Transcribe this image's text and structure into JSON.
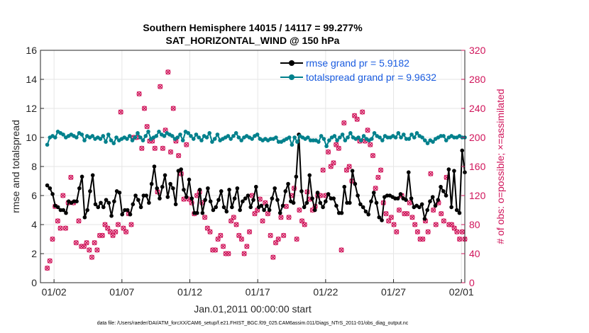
{
  "chart_data": {
    "type": "line",
    "title": "Southern Hemisphere 14015 / 14117 = 99.277%",
    "subtitle": "SAT_HORIZONTAL_WIND @ 150 hPa",
    "xlabel": "Jan.01,2011 00:00:00 start",
    "ylabel_left": "rmse and totalspread",
    "ylabel_right": "# of obs: o=possible; ×=assimilated",
    "x_ticks": [
      {
        "day": 1.5,
        "label": "01/02"
      },
      {
        "day": 6.5,
        "label": "01/07"
      },
      {
        "day": 11.5,
        "label": "01/12"
      },
      {
        "day": 16.5,
        "label": "01/17"
      },
      {
        "day": 21.5,
        "label": "01/22"
      },
      {
        "day": 26.5,
        "label": "01/27"
      },
      {
        "day": 31.5,
        "label": "02/01"
      }
    ],
    "x_range": [
      0.5,
      31.75
    ],
    "ylim_left": [
      0,
      16
    ],
    "yticks_left": [
      0,
      2,
      4,
      6,
      8,
      10,
      12,
      14,
      16
    ],
    "ylim_right": [
      0,
      320
    ],
    "yticks_right": [
      0,
      40,
      80,
      120,
      160,
      200,
      240,
      280,
      320
    ],
    "legend_position": "top-right",
    "footer": "data file: /Users/raeder/DAI/ATM_forcXX/CAM6_setup/f.e21.FHIST_BGC.f09_025.CAM6assim.011/Diags_NTrS_2011-01/obs_diag_output.nc",
    "series": [
      {
        "name": "rmse",
        "legend": "rmse grand pr = 5.9182",
        "color": "#000000",
        "axis": "left",
        "values": [
          6.7,
          6.5,
          6.1,
          5.3,
          5.2,
          5.0,
          5.0,
          4.8,
          5.6,
          5.5,
          5.6,
          5.6,
          6.5,
          7.3,
          4.5,
          5.0,
          6.3,
          7.4,
          5.4,
          5.2,
          5.5,
          5.2,
          5.7,
          5.5,
          4.6,
          5.6,
          6.3,
          6.2,
          4.7,
          5.0,
          5.0,
          4.7,
          5.4,
          6.0,
          5.7,
          5.2,
          6.0,
          6.0,
          5.5,
          6.8,
          8.0,
          6.5,
          5.8,
          6.6,
          7.4,
          5.9,
          6.8,
          6.5,
          5.4,
          7.7,
          7.8,
          6.4,
          5.9,
          7.1,
          5.8,
          4.8,
          4.8,
          6.4,
          4.8,
          5.7,
          6.5,
          5.6,
          5.0,
          5.2,
          5.7,
          6.3,
          5.2,
          4.9,
          6.4,
          5.2,
          5.8,
          6.5,
          5.0,
          5.6,
          5.8,
          6.0,
          5.2,
          5.7,
          6.6,
          5.2,
          5.3,
          5.0,
          5.3,
          5.0,
          5.8,
          6.5,
          5.7,
          4.8,
          5.3,
          6.3,
          6.8,
          5.6,
          5.5,
          7.3,
          10.2,
          6.3,
          5.2,
          5.5,
          7.4,
          5.8,
          5.0,
          6.2,
          5.5,
          5.2,
          5.6,
          6.1,
          5.8,
          5.8,
          5.3,
          4.8,
          4.8,
          6.6,
          5.5,
          5.5,
          7.7,
          6.8,
          6.0,
          5.4,
          5.2,
          4.9,
          4.7,
          5.6,
          6.2,
          5.5,
          4.5,
          4.3,
          5.9,
          6.0,
          6.0,
          5.9,
          5.8,
          5.8,
          6.1,
          5.8,
          5.7,
          7.6,
          5.8,
          5.2,
          5.3,
          5.2,
          5.4,
          4.4,
          5.0,
          5.6,
          5.9,
          5.3,
          5.7,
          6.6,
          6.3,
          6.0,
          7.8,
          5.2,
          7.7,
          5.0,
          4.8,
          9.1,
          7.6
        ]
      },
      {
        "name": "totalspread",
        "legend": "totalspread grand pr = 9.9632",
        "color": "#00808c",
        "axis": "left",
        "values": [
          9.5,
          10.0,
          10.1,
          10.0,
          10.4,
          10.3,
          10.2,
          10.0,
          10.1,
          10.2,
          10.1,
          10.0,
          10.3,
          10.2,
          9.8,
          10.1,
          10.0,
          10.1,
          9.9,
          10.0,
          9.9,
          10.1,
          9.7,
          10.2,
          9.8,
          9.6,
          10.0,
          9.8,
          9.9,
          10.0,
          9.9,
          10.1,
          9.8,
          10.0,
          10.3,
          10.0,
          9.8,
          10.1,
          10.4,
          9.9,
          10.0,
          10.1,
          10.4,
          10.2,
          10.1,
          10.3,
          10.2,
          10.1,
          9.9,
          10.0,
          10.2,
          9.8,
          10.4,
          10.3,
          10.1,
          9.9,
          10.2,
          10.0,
          9.8,
          10.1,
          10.0,
          10.3,
          9.7,
          9.9,
          10.2,
          9.8,
          9.9,
          10.0,
          10.1,
          9.9,
          10.1,
          10.3,
          10.0,
          9.8,
          10.0,
          10.1,
          10.0,
          9.9,
          10.1,
          10.2,
          9.9,
          9.8,
          9.9,
          9.8,
          9.9,
          9.9,
          10.0,
          9.7,
          9.7,
          9.8,
          9.9,
          10.0,
          9.5,
          10.0,
          9.7,
          10.1,
          10.0,
          9.9,
          10.0,
          9.8,
          9.8,
          9.8,
          9.7,
          10.1,
          9.9,
          9.4,
          9.8,
          10.0,
          10.1,
          9.8,
          10.0,
          10.2,
          9.8,
          10.0,
          10.3,
          10.0,
          9.9,
          10.0,
          9.8,
          10.1,
          9.9,
          9.8,
          9.9,
          10.3,
          10.1,
          10.0,
          9.8,
          10.1,
          10.0,
          10.0,
          10.1,
          10.0,
          10.3,
          10.0,
          10.2,
          9.9,
          9.9,
          10.2,
          10.0,
          10.3,
          10.1,
          10.0,
          9.8,
          9.6,
          9.8,
          9.7,
          9.9,
          10.0,
          10.1,
          10.1,
          9.8,
          10.0,
          10.1,
          10.0,
          10.0,
          10.1,
          10.0,
          10.0
        ]
      }
    ],
    "obs_counts": {
      "color": "#d0145a",
      "axis": "right",
      "values": [
        20,
        30,
        60,
        105,
        85,
        75,
        120,
        75,
        110,
        145,
        110,
        55,
        85,
        50,
        50,
        55,
        45,
        35,
        55,
        45,
        65,
        65,
        80,
        75,
        70,
        65,
        70,
        80,
        235,
        75,
        70,
        95,
        80,
        200,
        200,
        260,
        185,
        240,
        215,
        195,
        195,
        185,
        125,
        270,
        185,
        210,
        290,
        180,
        240,
        195,
        175,
        150,
        115,
        190,
        115,
        110,
        95,
        120,
        125,
        110,
        90,
        75,
        70,
        45,
        45,
        60,
        65,
        50,
        40,
        40,
        85,
        90,
        80,
        65,
        60,
        40,
        50,
        70,
        120,
        95,
        100,
        115,
        85,
        110,
        95,
        65,
        35,
        55,
        60,
        90,
        65,
        105,
        90,
        120,
        130,
        60,
        100,
        85,
        80,
        125,
        115,
        100,
        105,
        120,
        120,
        155,
        120,
        180,
        160,
        165,
        190,
        185,
        45,
        220,
        155,
        160,
        140,
        230,
        225,
        195,
        235,
        195,
        210,
        190,
        175,
        130,
        145,
        155,
        110,
        95,
        85,
        90,
        80,
        70,
        100,
        120,
        95,
        95,
        110,
        90,
        80,
        70,
        60,
        60,
        85,
        70,
        150,
        100,
        80,
        110,
        95,
        85,
        145,
        80,
        80,
        75,
        70,
        60,
        70,
        60
      ]
    }
  }
}
